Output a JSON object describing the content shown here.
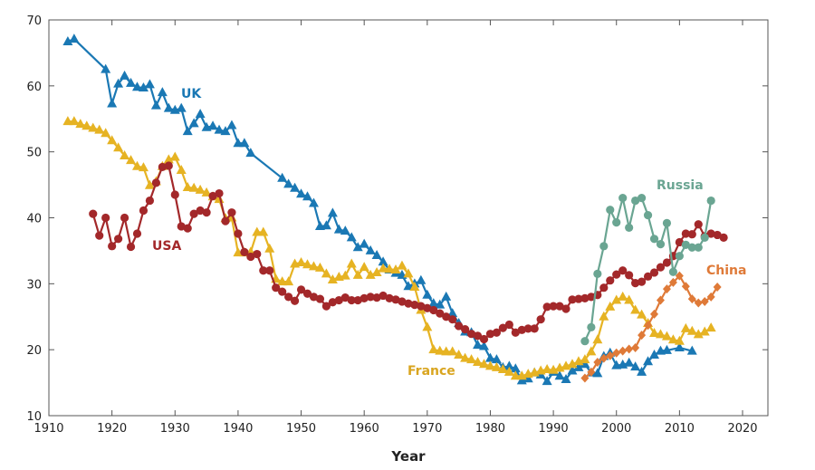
{
  "chart_data": {
    "type": "line",
    "title": "",
    "xlabel": "Year",
    "ylabel": "",
    "xlim": [
      1910,
      2025
    ],
    "ylim": [
      10,
      70
    ],
    "xticks": [
      1910,
      1920,
      1930,
      1940,
      1950,
      1960,
      1970,
      1980,
      1990,
      2000,
      2010,
      2020
    ],
    "yticks": [
      10,
      20,
      30,
      40,
      50,
      60,
      70
    ],
    "grid": false,
    "series": [
      {
        "name": "UK",
        "color": "#1a78b4",
        "marker": "triangle",
        "x": [
          1913,
          1914,
          1919,
          1920,
          1921,
          1922,
          1923,
          1924,
          1925,
          1926,
          1927,
          1928,
          1929,
          1930,
          1931,
          1932,
          1933,
          1934,
          1935,
          1936,
          1937,
          1938,
          1939,
          1940,
          1941,
          1942,
          1947,
          1948,
          1949,
          1950,
          1951,
          1952,
          1953,
          1954,
          1955,
          1956,
          1957,
          1958,
          1959,
          1960,
          1961,
          1962,
          1963,
          1964,
          1965,
          1966,
          1967,
          1968,
          1969,
          1970,
          1971,
          1972,
          1973,
          1974,
          1975,
          1976,
          1977,
          1978,
          1979,
          1980,
          1981,
          1982,
          1983,
          1984,
          1985,
          1986,
          1987,
          1988,
          1989,
          1990,
          1991,
          1992,
          1993,
          1994,
          1995,
          1996,
          1997,
          1998,
          1999,
          2000,
          2001,
          2002,
          2003,
          2004,
          2005,
          2006,
          2007,
          2008,
          2010,
          2012
        ],
        "y": [
          66.7,
          67.1,
          62.5,
          57.3,
          60.3,
          61.5,
          60.4,
          59.8,
          59.7,
          60.2,
          57,
          59,
          56.6,
          56.3,
          56.6,
          53.1,
          54.3,
          55.7,
          53.7,
          53.9,
          53.3,
          53.1,
          54,
          51.3,
          51.3,
          49.8,
          46,
          45.1,
          44.5,
          43.6,
          43.2,
          42.2,
          38.7,
          38.8,
          40.7,
          38.2,
          38,
          37,
          35.5,
          36,
          35,
          34.3,
          33.3,
          32.1,
          31.6,
          31.3,
          29.6,
          30,
          30.5,
          28.3,
          27,
          26.8,
          28,
          25.5,
          24,
          22.7,
          22.6,
          20.7,
          20.5,
          18.7,
          18.5,
          17.3,
          17.5,
          17.1,
          15.3,
          15.6,
          16.5,
          16.2,
          15.2,
          16.6,
          16,
          15.5,
          16.8,
          17.3,
          17.8,
          16.5,
          16.4,
          19,
          19.5,
          17.6,
          17.7,
          18,
          17.4,
          16.6,
          18.2,
          19.2,
          19.8,
          19.9,
          20.3,
          19.8
        ]
      },
      {
        "name": "France",
        "color": "#e6b323",
        "marker": "triangle",
        "x": [
          1913,
          1914,
          1915,
          1916,
          1917,
          1918,
          1919,
          1920,
          1921,
          1922,
          1923,
          1924,
          1925,
          1926,
          1927,
          1928,
          1929,
          1930,
          1931,
          1932,
          1933,
          1934,
          1935,
          1936,
          1937,
          1938,
          1939,
          1940,
          1941,
          1942,
          1943,
          1944,
          1945,
          1946,
          1947,
          1948,
          1949,
          1950,
          1951,
          1952,
          1953,
          1954,
          1955,
          1956,
          1957,
          1958,
          1959,
          1960,
          1961,
          1962,
          1963,
          1964,
          1965,
          1966,
          1967,
          1968,
          1969,
          1970,
          1971,
          1972,
          1973,
          1974,
          1975,
          1976,
          1977,
          1978,
          1979,
          1980,
          1981,
          1982,
          1983,
          1984,
          1985,
          1986,
          1987,
          1988,
          1989,
          1990,
          1991,
          1992,
          1993,
          1994,
          1995,
          1996,
          1997,
          1998,
          1999,
          2000,
          2001,
          2002,
          2003,
          2004,
          2005,
          2006,
          2007,
          2008,
          2009,
          2010,
          2011,
          2012,
          2013,
          2014,
          2015
        ],
        "y": [
          54.6,
          54.6,
          54.2,
          53.9,
          53.6,
          53.3,
          52.8,
          51.7,
          50.6,
          49.4,
          48.7,
          47.8,
          47.6,
          44.9,
          45.5,
          47.8,
          48.8,
          49.2,
          47.2,
          44.6,
          44.5,
          44.2,
          43.8,
          43.2,
          42.8,
          39.9,
          40,
          34.7,
          34.7,
          34.8,
          37.8,
          37.8,
          35.3,
          30.7,
          30.3,
          30.3,
          33,
          33.2,
          32.9,
          32.6,
          32.4,
          31.5,
          30.6,
          31,
          31.2,
          33,
          31.3,
          32.5,
          31.3,
          31.7,
          32.3,
          32.2,
          32.1,
          32.7,
          31.5,
          29.5,
          26,
          23.4,
          20,
          19.8,
          19.7,
          19.7,
          19.2,
          18.7,
          18.5,
          18.1,
          17.8,
          17.5,
          17.3,
          17,
          16.6,
          16,
          16,
          16.3,
          16.5,
          16.8,
          17,
          16.9,
          17.2,
          17.5,
          17.8,
          18.2,
          18.5,
          19.7,
          21.5,
          25,
          26.5,
          27.5,
          28,
          27.5,
          26,
          25.3,
          24,
          22.5,
          22.3,
          22,
          21.5,
          21.3,
          23.2,
          22.8,
          22.3,
          22.7,
          23.3
        ]
      },
      {
        "name": "USA",
        "color": "#a3282a",
        "marker": "circle",
        "x": [
          1917,
          1918,
          1919,
          1920,
          1921,
          1922,
          1923,
          1924,
          1925,
          1926,
          1927,
          1928,
          1929,
          1930,
          1931,
          1932,
          1933,
          1934,
          1935,
          1936,
          1937,
          1938,
          1939,
          1940,
          1941,
          1942,
          1943,
          1944,
          1945,
          1946,
          1947,
          1948,
          1949,
          1950,
          1951,
          1952,
          1953,
          1954,
          1955,
          1956,
          1957,
          1958,
          1959,
          1960,
          1961,
          1962,
          1963,
          1964,
          1965,
          1966,
          1967,
          1968,
          1969,
          1970,
          1971,
          1972,
          1973,
          1974,
          1975,
          1976,
          1977,
          1978,
          1979,
          1980,
          1981,
          1982,
          1983,
          1984,
          1985,
          1986,
          1987,
          1988,
          1989,
          1990,
          1991,
          1992,
          1993,
          1994,
          1995,
          1996,
          1997,
          1998,
          1999,
          2000,
          2001,
          2002,
          2003,
          2004,
          2005,
          2006,
          2007,
          2008,
          2009,
          2010,
          2011,
          2012,
          2013,
          2014,
          2015,
          2016,
          2017
        ],
        "y": [
          40.6,
          37.3,
          40,
          35.7,
          36.8,
          40,
          35.6,
          37.6,
          41.1,
          42.6,
          45.3,
          47.7,
          47.9,
          43.5,
          38.7,
          38.4,
          40.6,
          41.1,
          40.8,
          43.3,
          43.7,
          39.5,
          40.8,
          37.6,
          34.8,
          34.1,
          34.5,
          32,
          32,
          29.4,
          28.8,
          28,
          27.4,
          29.1,
          28.5,
          28,
          27.7,
          26.6,
          27.2,
          27.5,
          27.9,
          27.5,
          27.5,
          27.8,
          28,
          27.9,
          28.2,
          27.8,
          27.6,
          27.3,
          27,
          26.8,
          26.6,
          26.3,
          26,
          25.5,
          25,
          24.6,
          23.6,
          23.1,
          22.4,
          22.1,
          21.6,
          22.4,
          22.6,
          23.3,
          23.8,
          22.6,
          23,
          23.2,
          23.2,
          24.6,
          26.5,
          26.6,
          26.6,
          26.2,
          27.6,
          27.7,
          27.8,
          28,
          28.3,
          29.4,
          30.5,
          31.4,
          32,
          31.3,
          30.1,
          30.3,
          31.1,
          31.7,
          32.5,
          33.2,
          34.2,
          36.3,
          37.6,
          37.5,
          39,
          37.2,
          37.6,
          37.4,
          37
        ]
      },
      {
        "name": "Russia",
        "color": "#6aa592",
        "marker": "circle",
        "x": [
          1995,
          1996,
          1997,
          1998,
          1999,
          2000,
          2001,
          2002,
          2003,
          2004,
          2005,
          2006,
          2007,
          2008,
          2009,
          2010,
          2011,
          2012,
          2013,
          2014,
          2015
        ],
        "y": [
          21.3,
          23.4,
          31.5,
          35.7,
          41.2,
          39.3,
          43,
          38.5,
          42.6,
          43,
          40.4,
          36.8,
          36,
          39.2,
          31.8,
          34.2,
          35.9,
          35.5,
          35.5,
          37,
          42.6
        ]
      },
      {
        "name": "China",
        "color": "#df7a38",
        "marker": "diamond",
        "x": [
          1995,
          1996,
          1997,
          1998,
          1999,
          2000,
          2001,
          2002,
          2003,
          2004,
          2005,
          2006,
          2007,
          2008,
          2009,
          2010,
          2011,
          2012,
          2013,
          2014,
          2015,
          2016
        ],
        "y": [
          15.7,
          16.6,
          18.1,
          18.7,
          19.1,
          19.5,
          19.8,
          20.1,
          20.3,
          22.2,
          23.7,
          25.4,
          27.5,
          29.2,
          30.2,
          31.2,
          29.6,
          27.7,
          27.1,
          27.3,
          28,
          29.5
        ]
      }
    ]
  }
}
